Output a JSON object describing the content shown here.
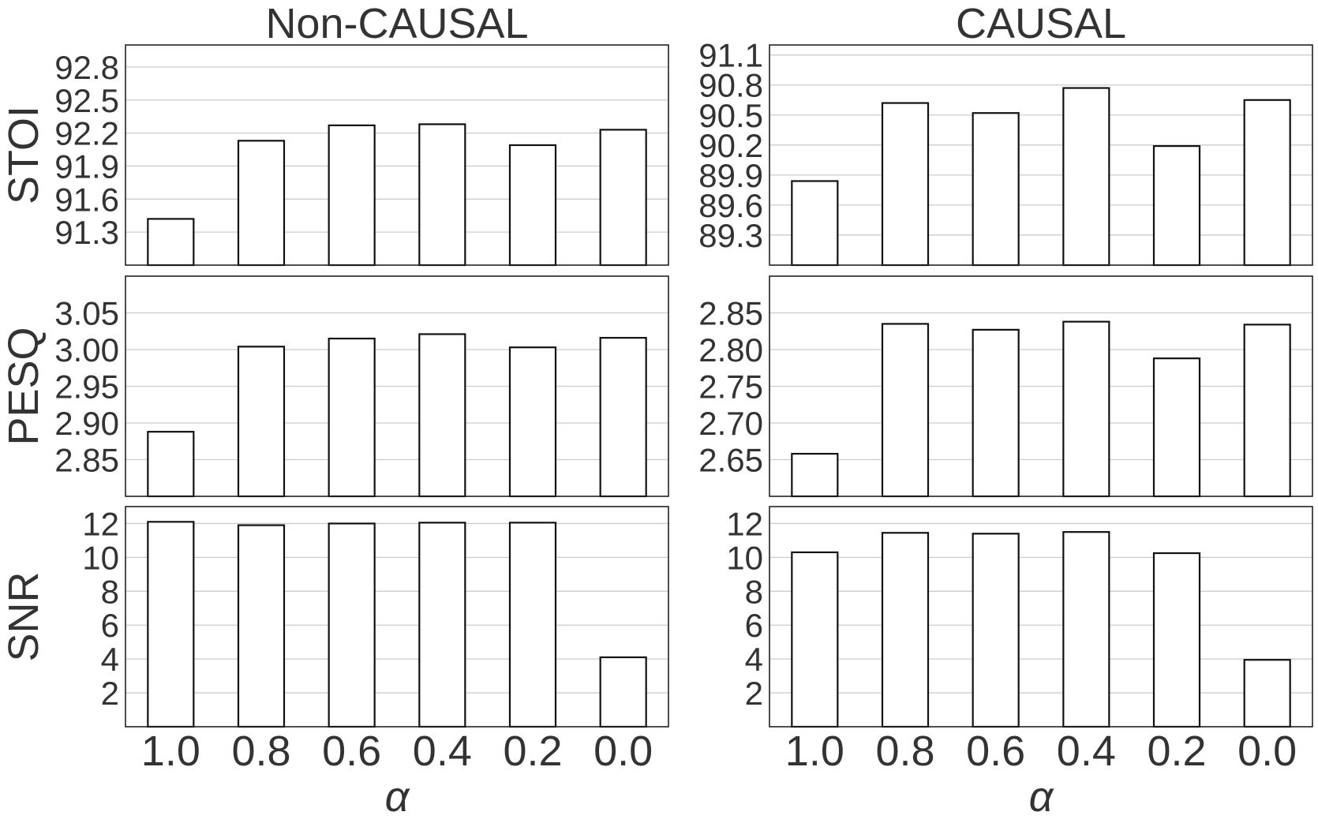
{
  "chart_data": {
    "type": "bar",
    "columns": [
      "Non-CAUSAL",
      "CAUSAL"
    ],
    "categories": [
      "1.0",
      "0.8",
      "0.6",
      "0.4",
      "0.2",
      "0.0"
    ],
    "xlabel": "α",
    "rows": [
      {
        "ylabel": "STOI",
        "panels": [
          {
            "title": "Non-CAUSAL",
            "ylim": [
              91.0,
              93.0
            ],
            "yticks": [
              "91.3",
              "91.6",
              "91.9",
              "92.2",
              "92.5",
              "92.8"
            ],
            "values": [
              91.42,
              92.13,
              92.27,
              92.28,
              92.09,
              92.23
            ]
          },
          {
            "title": "CAUSAL",
            "ylim": [
              89.0,
              91.2
            ],
            "yticks": [
              "89.3",
              "89.6",
              "89.9",
              "90.2",
              "90.5",
              "90.8",
              "91.1"
            ],
            "values": [
              89.84,
              90.62,
              90.52,
              90.77,
              90.19,
              90.65
            ]
          }
        ]
      },
      {
        "ylabel": "PESQ",
        "panels": [
          {
            "title": "Non-CAUSAL",
            "ylim": [
              2.8,
              3.1
            ],
            "yticks": [
              "2.85",
              "2.90",
              "2.95",
              "3.00",
              "3.05"
            ],
            "values": [
              2.888,
              3.004,
              3.015,
              3.021,
              3.003,
              3.016
            ]
          },
          {
            "title": "CAUSAL",
            "ylim": [
              2.6,
              2.9
            ],
            "yticks": [
              "2.65",
              "2.70",
              "2.75",
              "2.80",
              "2.85"
            ],
            "values": [
              2.658,
              2.835,
              2.827,
              2.838,
              2.788,
              2.834
            ]
          }
        ]
      },
      {
        "ylabel": "SNR",
        "panels": [
          {
            "title": "Non-CAUSAL",
            "ylim": [
              0,
              13
            ],
            "yticks": [
              "2",
              "4",
              "6",
              "8",
              "10",
              "12"
            ],
            "values": [
              12.1,
              11.9,
              12.0,
              12.05,
              12.05,
              4.1
            ]
          },
          {
            "title": "CAUSAL",
            "ylim": [
              0,
              13
            ],
            "yticks": [
              "2",
              "4",
              "6",
              "8",
              "10",
              "12"
            ],
            "values": [
              10.3,
              11.45,
              11.4,
              11.5,
              10.25,
              3.95
            ]
          }
        ]
      }
    ],
    "grid": "horizontal",
    "bar_fill": "#ffffff",
    "bar_edge": "#111111"
  }
}
